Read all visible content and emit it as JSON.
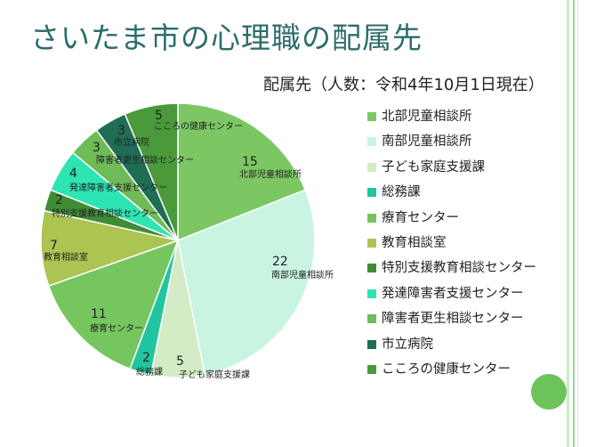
{
  "page": {
    "title": "さいたま市の心理職の配属先",
    "subtitle": "配属先（人数：令和4年10月1日現在）"
  },
  "chart_data": {
    "type": "pie",
    "title": "",
    "categories": [
      "北部児童相談所",
      "南部児童相談所",
      "子ども家庭支援課",
      "総務課",
      "療育センター",
      "教育相談室",
      "特別支援教育相談センター",
      "発達障害者支援センター",
      "障害者更生相談センター",
      "市立病院",
      "こころの健康センター"
    ],
    "values": [
      15,
      22,
      5,
      2,
      11,
      7,
      2,
      4,
      3,
      3,
      5
    ],
    "colors": [
      "#7cc764",
      "#c9f4e2",
      "#d3ecc5",
      "#20c5a0",
      "#75c65e",
      "#abc452",
      "#3e8d35",
      "#2ee4b2",
      "#6fbb57",
      "#1f6d56",
      "#4a9a3b"
    ],
    "legend_position": "right",
    "data_labels": "value and category"
  }
}
